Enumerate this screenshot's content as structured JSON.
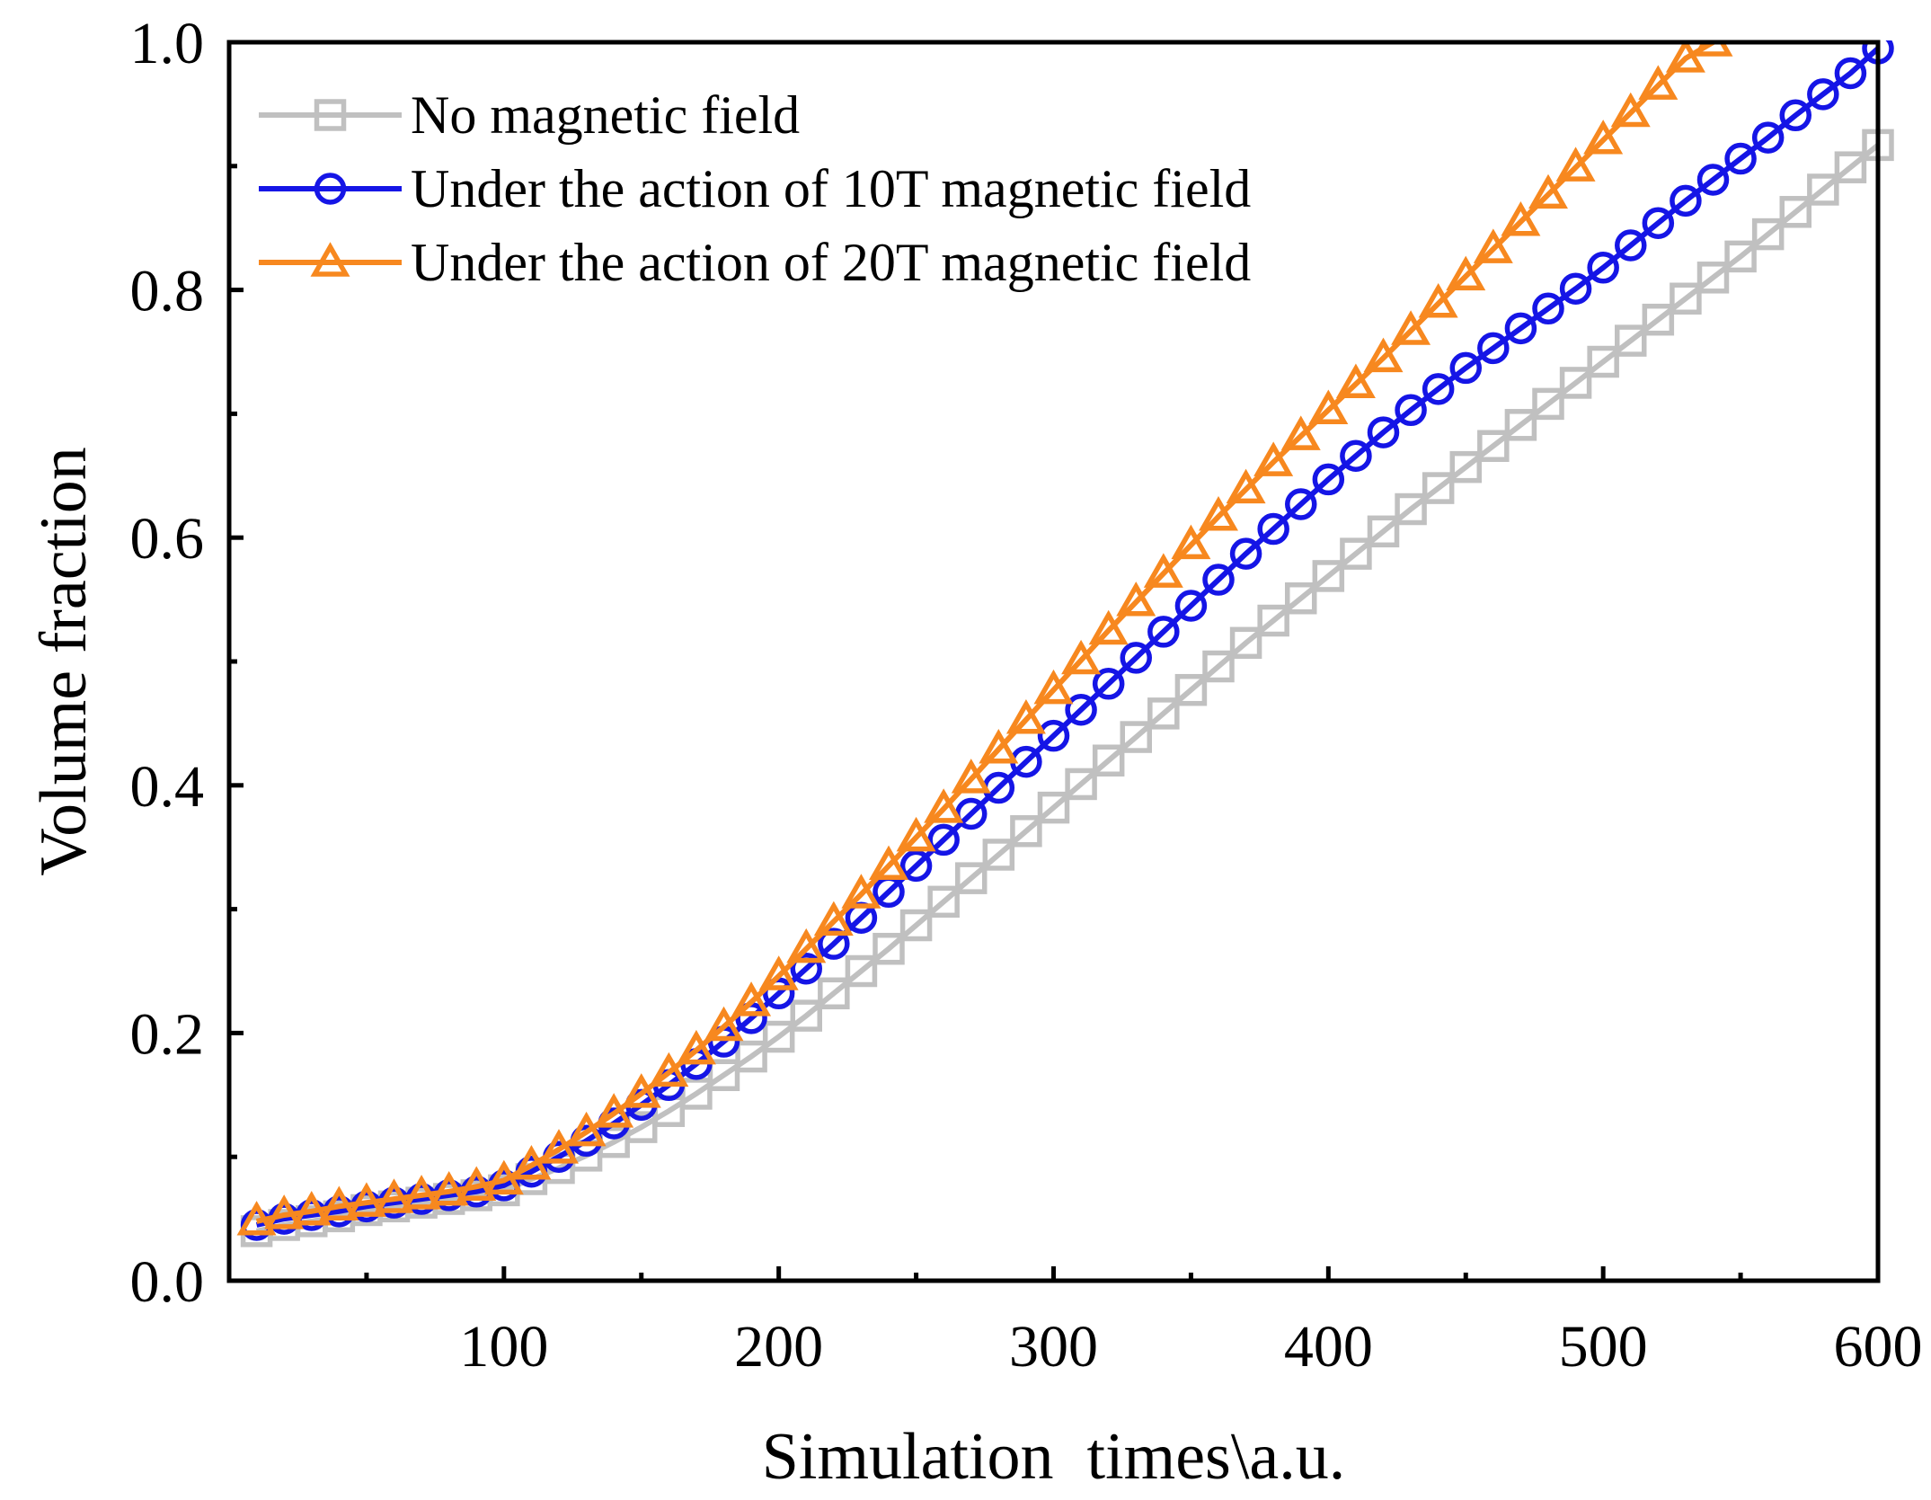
{
  "chart_data": {
    "type": "line",
    "title": "",
    "xlabel": "Simulation  times\\a.u.",
    "ylabel": "Volume fraction",
    "xlim": [
      0,
      600
    ],
    "ylim": [
      0,
      1.0
    ],
    "xticks": [
      100,
      200,
      300,
      400,
      500,
      600
    ],
    "yticks": [
      0.0,
      0.2,
      0.4,
      0.6,
      0.8,
      1.0
    ],
    "xtick_labels": [
      "100",
      "200",
      "300",
      "400",
      "500",
      "600"
    ],
    "ytick_labels": [
      "0.0",
      "0.2",
      "0.4",
      "0.6",
      "0.8",
      "1.0"
    ],
    "legend_position": "top-left",
    "grid": false,
    "series": [
      {
        "name": "No magnetic field",
        "color": "#c0c0c0",
        "marker": "square",
        "x": [
          10,
          20,
          30,
          40,
          50,
          60,
          70,
          80,
          90,
          100,
          110,
          120,
          130,
          140,
          150,
          160,
          170,
          180,
          190,
          200,
          210,
          220,
          230,
          240,
          250,
          260,
          270,
          280,
          290,
          300,
          310,
          320,
          330,
          340,
          350,
          360,
          370,
          380,
          390,
          400,
          410,
          420,
          430,
          440,
          450,
          460,
          470,
          480,
          490,
          500,
          510,
          520,
          530,
          540,
          550,
          560,
          570,
          580,
          590,
          600
        ],
        "y": [
          0.04,
          0.045,
          0.048,
          0.052,
          0.057,
          0.06,
          0.063,
          0.066,
          0.069,
          0.073,
          0.082,
          0.091,
          0.101,
          0.112,
          0.124,
          0.137,
          0.151,
          0.166,
          0.181,
          0.197,
          0.214,
          0.232,
          0.25,
          0.268,
          0.287,
          0.306,
          0.325,
          0.344,
          0.363,
          0.382,
          0.401,
          0.42,
          0.439,
          0.458,
          0.477,
          0.496,
          0.515,
          0.533,
          0.551,
          0.569,
          0.587,
          0.605,
          0.623,
          0.64,
          0.657,
          0.674,
          0.691,
          0.708,
          0.725,
          0.742,
          0.759,
          0.776,
          0.793,
          0.81,
          0.827,
          0.845,
          0.863,
          0.881,
          0.899,
          0.917
        ]
      },
      {
        "name": "Under the action of 10T magnetic field",
        "color": "#1515e6",
        "marker": "circle",
        "x": [
          10,
          20,
          30,
          40,
          50,
          60,
          70,
          80,
          90,
          100,
          110,
          120,
          130,
          140,
          150,
          160,
          170,
          180,
          190,
          200,
          210,
          220,
          230,
          240,
          250,
          260,
          270,
          280,
          290,
          300,
          310,
          320,
          330,
          340,
          350,
          360,
          370,
          380,
          390,
          400,
          410,
          420,
          430,
          440,
          450,
          460,
          470,
          480,
          490,
          500,
          510,
          520,
          530,
          540,
          550,
          560,
          570,
          580,
          590,
          600
        ],
        "y": [
          0.045,
          0.05,
          0.053,
          0.056,
          0.06,
          0.063,
          0.066,
          0.069,
          0.072,
          0.077,
          0.088,
          0.1,
          0.113,
          0.127,
          0.142,
          0.158,
          0.175,
          0.193,
          0.212,
          0.232,
          0.252,
          0.272,
          0.293,
          0.314,
          0.335,
          0.356,
          0.377,
          0.398,
          0.419,
          0.44,
          0.461,
          0.482,
          0.503,
          0.524,
          0.545,
          0.566,
          0.587,
          0.607,
          0.627,
          0.647,
          0.666,
          0.685,
          0.703,
          0.72,
          0.737,
          0.753,
          0.769,
          0.785,
          0.801,
          0.818,
          0.836,
          0.854,
          0.872,
          0.889,
          0.906,
          0.923,
          0.941,
          0.958,
          0.975,
          0.995
        ]
      },
      {
        "name": "Under the action of 20T magnetic field",
        "color": "#f7881f",
        "marker": "triangle",
        "x": [
          10,
          20,
          30,
          40,
          50,
          60,
          70,
          80,
          90,
          100,
          110,
          120,
          130,
          140,
          150,
          160,
          170,
          180,
          190,
          200,
          210,
          220,
          230,
          240,
          250,
          260,
          270,
          280,
          290,
          300,
          310,
          320,
          330,
          340,
          350,
          360,
          370,
          380,
          390,
          400,
          410,
          420,
          430,
          440,
          450,
          460,
          470,
          480,
          490,
          500,
          510,
          520,
          530,
          540
        ],
        "y": [
          0.048,
          0.053,
          0.056,
          0.06,
          0.063,
          0.066,
          0.069,
          0.072,
          0.076,
          0.081,
          0.093,
          0.106,
          0.12,
          0.135,
          0.151,
          0.168,
          0.186,
          0.205,
          0.225,
          0.246,
          0.268,
          0.29,
          0.312,
          0.335,
          0.358,
          0.381,
          0.405,
          0.429,
          0.453,
          0.477,
          0.501,
          0.525,
          0.548,
          0.571,
          0.594,
          0.617,
          0.639,
          0.661,
          0.682,
          0.703,
          0.724,
          0.745,
          0.767,
          0.789,
          0.811,
          0.833,
          0.855,
          0.877,
          0.899,
          0.921,
          0.943,
          0.965,
          0.987,
          1.0
        ]
      }
    ]
  }
}
